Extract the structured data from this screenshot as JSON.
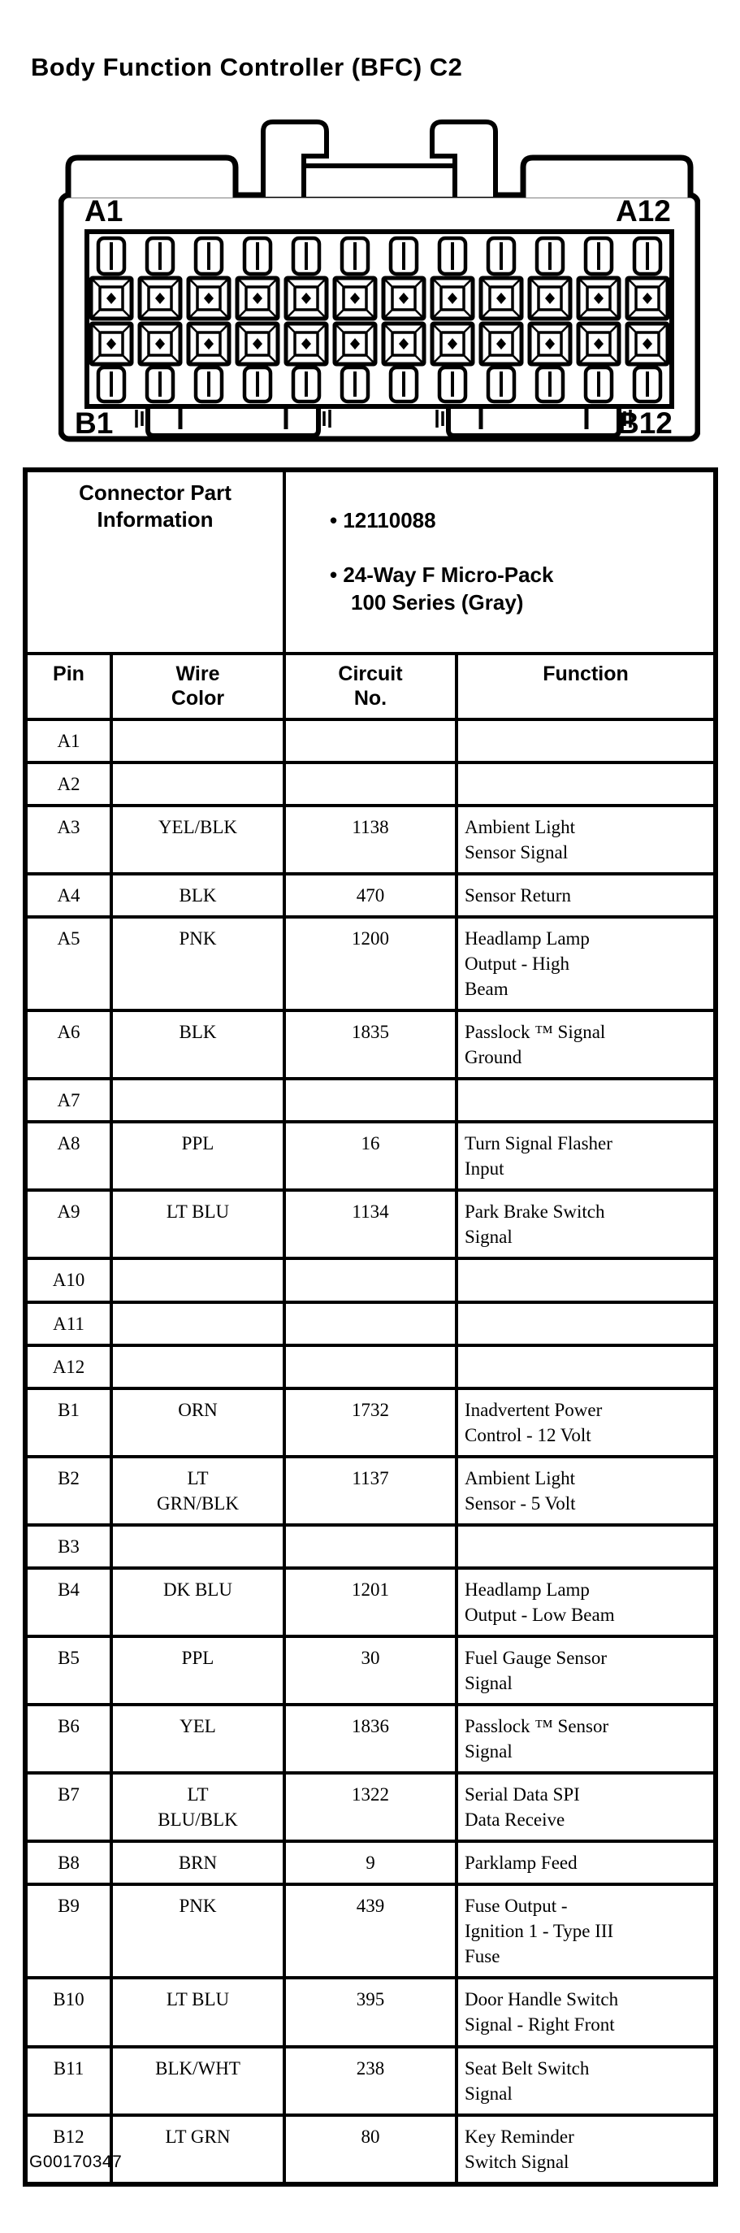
{
  "title": "Body Function Controller (BFC) C2",
  "footer_code": "G00170347",
  "connector": {
    "pins_per_row": 12,
    "top_left": "A1",
    "top_right": "A12",
    "bottom_left": "B1",
    "bottom_right": "B12"
  },
  "part_info": {
    "label": "Connector Part\nInformation",
    "bullets": [
      "12110088",
      "24-Way F Micro-Pack\n100 Series (Gray)"
    ]
  },
  "table": {
    "headers": [
      "Pin",
      "Wire\nColor",
      "Circuit\nNo.",
      "Function"
    ],
    "rows": [
      {
        "pin": "A1",
        "wire": "",
        "circuit": "",
        "function": ""
      },
      {
        "pin": "A2",
        "wire": "",
        "circuit": "",
        "function": ""
      },
      {
        "pin": "A3",
        "wire": "YEL/BLK",
        "circuit": "1138",
        "function": "Ambient Light\nSensor Signal"
      },
      {
        "pin": "A4",
        "wire": "BLK",
        "circuit": "470",
        "function": "Sensor Return"
      },
      {
        "pin": "A5",
        "wire": "PNK",
        "circuit": "1200",
        "function": "Headlamp Lamp\nOutput - High\nBeam"
      },
      {
        "pin": "A6",
        "wire": "BLK",
        "circuit": "1835",
        "function": "Passlock ™  Signal\nGround"
      },
      {
        "pin": "A7",
        "wire": "",
        "circuit": "",
        "function": ""
      },
      {
        "pin": "A8",
        "wire": "PPL",
        "circuit": "16",
        "function": "Turn Signal Flasher\nInput"
      },
      {
        "pin": "A9",
        "wire": "LT BLU",
        "circuit": "1134",
        "function": "Park Brake Switch\nSignal"
      },
      {
        "pin": "A10",
        "wire": "",
        "circuit": "",
        "function": ""
      },
      {
        "pin": "A11",
        "wire": "",
        "circuit": "",
        "function": ""
      },
      {
        "pin": "A12",
        "wire": "",
        "circuit": "",
        "function": ""
      },
      {
        "pin": "B1",
        "wire": "ORN",
        "circuit": "1732",
        "function": "Inadvertent Power\nControl - 12 Volt"
      },
      {
        "pin": "B2",
        "wire": "LT\nGRN/BLK",
        "circuit": "1137",
        "function": "Ambient Light\nSensor - 5 Volt"
      },
      {
        "pin": "B3",
        "wire": "",
        "circuit": "",
        "function": ""
      },
      {
        "pin": "B4",
        "wire": "DK BLU",
        "circuit": "1201",
        "function": "Headlamp Lamp\nOutput - Low Beam"
      },
      {
        "pin": "B5",
        "wire": "PPL",
        "circuit": "30",
        "function": "Fuel Gauge Sensor\nSignal"
      },
      {
        "pin": "B6",
        "wire": "YEL",
        "circuit": "1836",
        "function": "Passlock ™  Sensor\nSignal"
      },
      {
        "pin": "B7",
        "wire": "LT\nBLU/BLK",
        "circuit": "1322",
        "function": "Serial Data SPI\nData Receive"
      },
      {
        "pin": "B8",
        "wire": "BRN",
        "circuit": "9",
        "function": "Parklamp Feed"
      },
      {
        "pin": "B9",
        "wire": "PNK",
        "circuit": "439",
        "function": "Fuse Output -\nIgnition 1 - Type III\nFuse"
      },
      {
        "pin": "B10",
        "wire": "LT BLU",
        "circuit": "395",
        "function": "Door Handle Switch\nSignal - Right Front"
      },
      {
        "pin": "B11",
        "wire": "BLK/WHT",
        "circuit": "238",
        "function": "Seat Belt Switch\nSignal"
      },
      {
        "pin": "B12",
        "wire": "LT GRN",
        "circuit": "80",
        "function": "Key Reminder\nSwitch Signal"
      }
    ]
  }
}
